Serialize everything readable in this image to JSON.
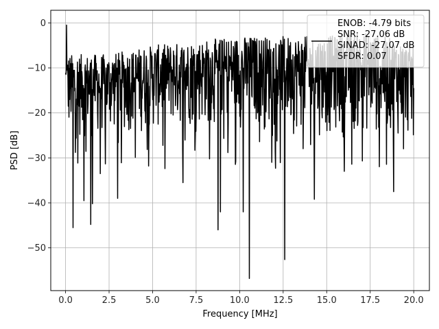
{
  "chart_data": {
    "type": "line",
    "xlabel": "Frequency [MHz]",
    "ylabel": "PSD [dB]",
    "xlim": [
      -0.85,
      20.9
    ],
    "ylim": [
      -59.5,
      2.8
    ],
    "xticks": [
      0.0,
      2.5,
      5.0,
      7.5,
      10.0,
      12.5,
      15.0,
      17.5,
      20.0
    ],
    "xtick_labels": [
      "0.0",
      "2.5",
      "5.0",
      "7.5",
      "10.0",
      "12.5",
      "15.0",
      "17.5",
      "20.0"
    ],
    "yticks": [
      0,
      -10,
      -20,
      -30,
      -40,
      -50
    ],
    "ytick_labels": [
      "0",
      "−10",
      "−20",
      "−30",
      "−40",
      "−50"
    ],
    "grid": true,
    "legend_position": "top-right",
    "series": [
      {
        "name": "ENOB: -4.79 bits\nSNR: -27.06 dB\nSINAD: -27.07 dB\nSFDR: 0.07",
        "color": "#000000",
        "x_range": [
          0.0,
          20.0
        ],
        "num_points": 1024,
        "band_trend": {
          "x": [
            0.0,
            2.5,
            5.0,
            7.5,
            10.0,
            12.5,
            15.0,
            17.5,
            20.0
          ],
          "upper_db": [
            -7,
            -7,
            -5,
            -4,
            -3,
            -3,
            -3,
            -2,
            -5
          ],
          "lower_db": [
            -27,
            -26,
            -25,
            -24,
            -24,
            -25,
            -26,
            -26,
            -27
          ]
        },
        "notable_points": [
          {
            "x": 0.05,
            "y": -0.5
          },
          {
            "x": 0.43,
            "y": -45.5
          },
          {
            "x": 1.05,
            "y": -39.5
          },
          {
            "x": 1.45,
            "y": -44.8
          },
          {
            "x": 1.55,
            "y": -40.2
          },
          {
            "x": 2.0,
            "y": -33.5
          },
          {
            "x": 3.0,
            "y": -39.0
          },
          {
            "x": 6.75,
            "y": -35.5
          },
          {
            "x": 8.75,
            "y": -46.0
          },
          {
            "x": 8.9,
            "y": -42.0
          },
          {
            "x": 10.2,
            "y": -42.0
          },
          {
            "x": 10.55,
            "y": -56.8
          },
          {
            "x": 12.6,
            "y": -52.6
          },
          {
            "x": 14.3,
            "y": -39.2
          },
          {
            "x": 18.85,
            "y": -37.5
          }
        ]
      }
    ]
  }
}
